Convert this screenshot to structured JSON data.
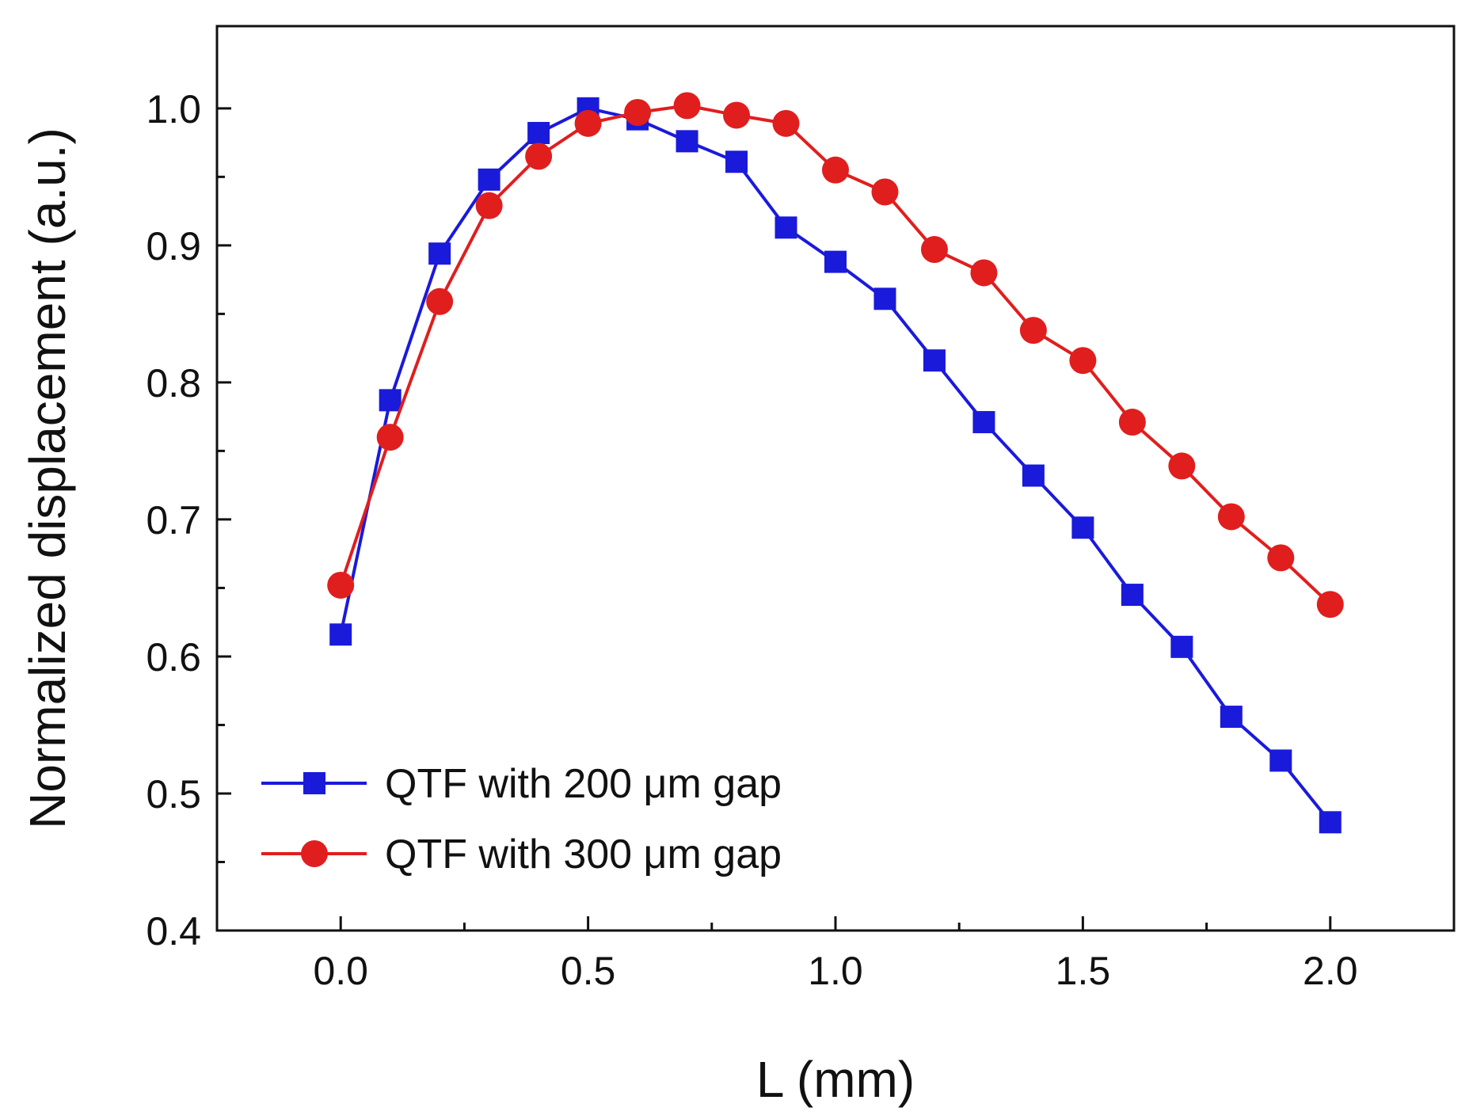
{
  "chart_data": {
    "type": "line",
    "title": "",
    "xlabel": "L (mm)",
    "ylabel": "Normalized displacement (a.u.)",
    "xlim": [
      -0.25,
      2.25
    ],
    "ylim": [
      0.4,
      1.06
    ],
    "xticks": [
      0.0,
      0.5,
      1.0,
      1.5,
      2.0
    ],
    "xtick_labels": [
      "0.0",
      "0.5",
      "1.0",
      "1.5",
      "2.0"
    ],
    "xminor_ticks": [
      0.25,
      0.75,
      1.25,
      1.75
    ],
    "yticks": [
      0.4,
      0.5,
      0.6,
      0.7,
      0.8,
      0.9,
      1.0
    ],
    "ytick_labels": [
      "0.4",
      "0.5",
      "0.6",
      "0.7",
      "0.8",
      "0.9",
      "1.0"
    ],
    "yminor_ticks": [
      0.45,
      0.55,
      0.65,
      0.75,
      0.85,
      0.95
    ],
    "grid": false,
    "legend_position": "bottom-left",
    "x": [
      0.0,
      0.1,
      0.2,
      0.3,
      0.4,
      0.5,
      0.6,
      0.7,
      0.8,
      0.9,
      1.0,
      1.1,
      1.2,
      1.3,
      1.4,
      1.5,
      1.6,
      1.7,
      1.8,
      1.9,
      2.0
    ],
    "series": [
      {
        "name": "QTF with 200 μm gap",
        "color": "#1a1adb",
        "marker": "square",
        "values": [
          0.616,
          0.787,
          0.894,
          0.948,
          0.982,
          1.0,
          0.992,
          0.976,
          0.961,
          0.913,
          0.888,
          0.861,
          0.816,
          0.771,
          0.732,
          0.694,
          0.645,
          0.607,
          0.556,
          0.524,
          0.479
        ]
      },
      {
        "name": "QTF with 300 μm gap",
        "color": "#e01e1e",
        "marker": "circle",
        "values": [
          0.652,
          0.76,
          0.859,
          0.929,
          0.965,
          0.989,
          0.997,
          1.002,
          0.995,
          0.989,
          0.955,
          0.939,
          0.897,
          0.88,
          0.838,
          0.816,
          0.771,
          0.739,
          0.702,
          0.672,
          0.638
        ]
      }
    ]
  }
}
